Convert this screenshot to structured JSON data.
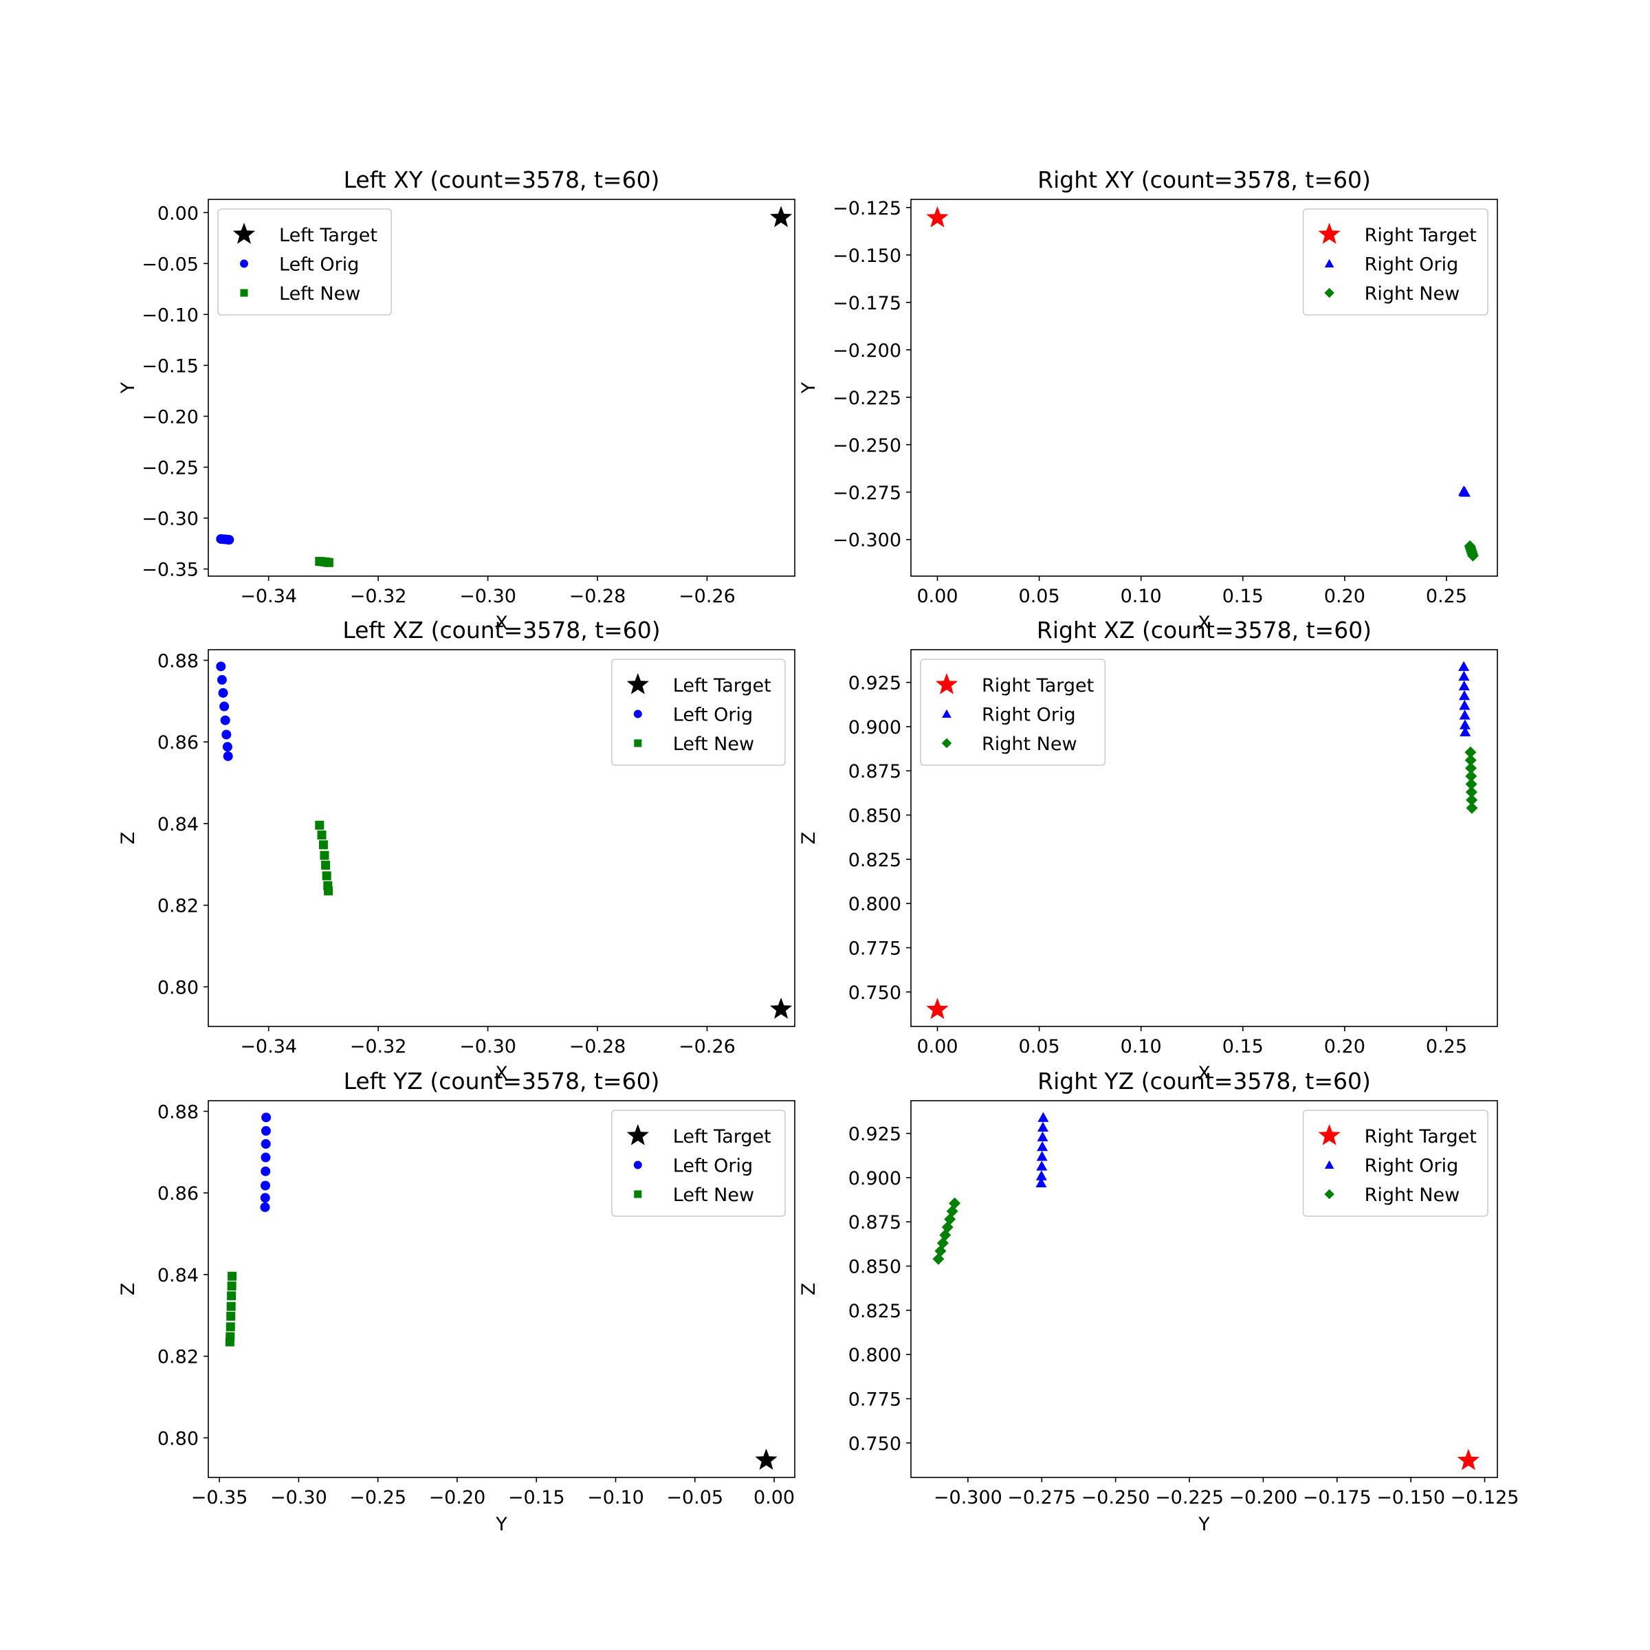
{
  "chart_data": [
    {
      "type": "scatter",
      "title": "Left XY (count=3578, t=60)",
      "xlabel": "X",
      "ylabel": "Y",
      "xlim": [
        -0.351,
        -0.244
      ],
      "ylim": [
        -0.357,
        0.013
      ],
      "xticks": [
        -0.34,
        -0.32,
        -0.3,
        -0.28,
        -0.26
      ],
      "yticks": [
        0.0,
        -0.05,
        -0.1,
        -0.15,
        -0.2,
        -0.25,
        -0.3,
        -0.35
      ],
      "xticklabels": [
        "−0.34",
        "−0.32",
        "−0.30",
        "−0.28",
        "−0.26"
      ],
      "yticklabels": [
        "0.00",
        "−0.05",
        "−0.10",
        "−0.15",
        "−0.20",
        "−0.25",
        "−0.30",
        "−0.35"
      ],
      "legend_position": "upper-left",
      "series": [
        {
          "name": "Left Target",
          "marker": "star",
          "color": "#000000",
          "points": [
            [
              -0.2465,
              -0.005
            ]
          ]
        },
        {
          "name": "Left Orig",
          "marker": "circle",
          "color": "#0000ff",
          "points": [
            [
              -0.3487,
              -0.3205
            ],
            [
              -0.3483,
              -0.3207
            ],
            [
              -0.3479,
              -0.3209
            ],
            [
              -0.3475,
              -0.3211
            ],
            [
              -0.3472,
              -0.3213
            ]
          ]
        },
        {
          "name": "Left New",
          "marker": "square",
          "color": "#008000",
          "points": [
            [
              -0.3307,
              -0.3425
            ],
            [
              -0.3302,
              -0.3428
            ],
            [
              -0.3297,
              -0.3431
            ],
            [
              -0.3293,
              -0.3434
            ],
            [
              -0.329,
              -0.3437
            ]
          ]
        }
      ]
    },
    {
      "type": "scatter",
      "title": "Right XY (count=3578, t=60)",
      "xlabel": "X",
      "ylabel": "Y",
      "xlim": [
        -0.013,
        0.275
      ],
      "ylim": [
        -0.3193,
        -0.1207
      ],
      "xticks": [
        0.0,
        0.05,
        0.1,
        0.15,
        0.2,
        0.25
      ],
      "yticks": [
        -0.125,
        -0.15,
        -0.175,
        -0.2,
        -0.225,
        -0.25,
        -0.275,
        -0.3
      ],
      "xticklabels": [
        "0.00",
        "0.05",
        "0.10",
        "0.15",
        "0.20",
        "0.25"
      ],
      "yticklabels": [
        "−0.125",
        "−0.150",
        "−0.175",
        "−0.200",
        "−0.225",
        "−0.250",
        "−0.275",
        "−0.300"
      ],
      "legend_position": "upper-right",
      "series": [
        {
          "name": "Right Target",
          "marker": "star",
          "color": "#ff0000",
          "points": [
            [
              0.0,
              -0.1305
            ]
          ]
        },
        {
          "name": "Right Orig",
          "marker": "triangle",
          "color": "#0000ff",
          "points": [
            [
              0.2585,
              -0.2745
            ],
            [
              0.2588,
              -0.2748
            ],
            [
              0.2591,
              -0.2751
            ]
          ]
        },
        {
          "name": "Right New",
          "marker": "diamond",
          "color": "#008000",
          "points": [
            [
              0.2615,
              -0.3035
            ],
            [
              0.2618,
              -0.3045
            ],
            [
              0.2621,
              -0.3055
            ],
            [
              0.2624,
              -0.3065
            ],
            [
              0.2627,
              -0.3075
            ],
            [
              0.263,
              -0.3085
            ]
          ]
        }
      ]
    },
    {
      "type": "scatter",
      "title": "Left XZ (count=3578, t=60)",
      "xlabel": "X",
      "ylabel": "Z",
      "xlim": [
        -0.351,
        -0.244
      ],
      "ylim": [
        0.7903,
        0.8826
      ],
      "xticks": [
        -0.34,
        -0.32,
        -0.3,
        -0.28,
        -0.26
      ],
      "yticks": [
        0.8,
        0.82,
        0.84,
        0.86,
        0.88
      ],
      "xticklabels": [
        "−0.34",
        "−0.32",
        "−0.30",
        "−0.28",
        "−0.26"
      ],
      "yticklabels": [
        "0.80",
        "0.82",
        "0.84",
        "0.86",
        "0.88"
      ],
      "legend_position": "upper-right",
      "series": [
        {
          "name": "Left Target",
          "marker": "star",
          "color": "#000000",
          "points": [
            [
              -0.2465,
              0.7945
            ]
          ]
        },
        {
          "name": "Left Orig",
          "marker": "circle",
          "color": "#0000ff",
          "points": [
            [
              -0.3487,
              0.8785
            ],
            [
              -0.3485,
              0.8752
            ],
            [
              -0.3483,
              0.872
            ],
            [
              -0.3481,
              0.8687
            ],
            [
              -0.3479,
              0.8653
            ],
            [
              -0.3477,
              0.8618
            ],
            [
              -0.3475,
              0.8588
            ],
            [
              -0.3474,
              0.8565
            ]
          ]
        },
        {
          "name": "Left New",
          "marker": "square",
          "color": "#008000",
          "points": [
            [
              -0.3307,
              0.8396
            ],
            [
              -0.3303,
              0.8372
            ],
            [
              -0.33,
              0.8348
            ],
            [
              -0.3298,
              0.8322
            ],
            [
              -0.3296,
              0.8298
            ],
            [
              -0.3294,
              0.8272
            ],
            [
              -0.3292,
              0.8248
            ],
            [
              -0.3291,
              0.8235
            ]
          ]
        }
      ]
    },
    {
      "type": "scatter",
      "title": "Right XZ (count=3578, t=60)",
      "xlabel": "X",
      "ylabel": "Z",
      "xlim": [
        -0.013,
        0.275
      ],
      "ylim": [
        0.7305,
        0.9435
      ],
      "xticks": [
        0.0,
        0.05,
        0.1,
        0.15,
        0.2,
        0.25
      ],
      "yticks": [
        0.75,
        0.775,
        0.8,
        0.825,
        0.85,
        0.875,
        0.9,
        0.925
      ],
      "xticklabels": [
        "0.00",
        "0.05",
        "0.10",
        "0.15",
        "0.20",
        "0.25"
      ],
      "yticklabels": [
        "0.750",
        "0.775",
        "0.800",
        "0.825",
        "0.850",
        "0.875",
        "0.900",
        "0.925"
      ],
      "legend_position": "upper-left",
      "series": [
        {
          "name": "Right Target",
          "marker": "star",
          "color": "#ff0000",
          "points": [
            [
              0.0,
              0.74
            ]
          ]
        },
        {
          "name": "Right Orig",
          "marker": "triangle",
          "color": "#0000ff",
          "points": [
            [
              0.2585,
              0.934
            ],
            [
              0.2586,
              0.9285
            ],
            [
              0.2587,
              0.923
            ],
            [
              0.2588,
              0.9175
            ],
            [
              0.2589,
              0.912
            ],
            [
              0.259,
              0.9065
            ],
            [
              0.2591,
              0.901
            ],
            [
              0.2592,
              0.897
            ]
          ]
        },
        {
          "name": "Right New",
          "marker": "diamond",
          "color": "#008000",
          "points": [
            [
              0.2618,
              0.8855
            ],
            [
              0.2619,
              0.881
            ],
            [
              0.262,
              0.8765
            ],
            [
              0.2621,
              0.872
            ],
            [
              0.2622,
              0.8675
            ],
            [
              0.2623,
              0.863
            ],
            [
              0.2624,
              0.8585
            ],
            [
              0.2625,
              0.854
            ]
          ]
        }
      ]
    },
    {
      "type": "scatter",
      "title": "Left YZ (count=3578, t=60)",
      "xlabel": "Y",
      "ylabel": "Z",
      "xlim": [
        -0.357,
        0.013
      ],
      "ylim": [
        0.7903,
        0.8826
      ],
      "xticks": [
        -0.35,
        -0.3,
        -0.25,
        -0.2,
        -0.15,
        -0.1,
        -0.05,
        0.0
      ],
      "yticks": [
        0.8,
        0.82,
        0.84,
        0.86,
        0.88
      ],
      "xticklabels": [
        "−0.35",
        "−0.30",
        "−0.25",
        "−0.20",
        "−0.15",
        "−0.10",
        "−0.05",
        "0.00"
      ],
      "yticklabels": [
        "0.80",
        "0.82",
        "0.84",
        "0.86",
        "0.88"
      ],
      "legend_position": "upper-right",
      "series": [
        {
          "name": "Left Target",
          "marker": "star",
          "color": "#000000",
          "points": [
            [
              -0.005,
              0.7945
            ]
          ]
        },
        {
          "name": "Left Orig",
          "marker": "circle",
          "color": "#0000ff",
          "points": [
            [
              -0.3205,
              0.8785
            ],
            [
              -0.3206,
              0.8752
            ],
            [
              -0.3207,
              0.872
            ],
            [
              -0.3208,
              0.8687
            ],
            [
              -0.3209,
              0.8653
            ],
            [
              -0.321,
              0.8618
            ],
            [
              -0.3211,
              0.8588
            ],
            [
              -0.3212,
              0.8565
            ]
          ]
        },
        {
          "name": "Left New",
          "marker": "square",
          "color": "#008000",
          "points": [
            [
              -0.342,
              0.8396
            ],
            [
              -0.3422,
              0.8372
            ],
            [
              -0.3424,
              0.8348
            ],
            [
              -0.3426,
              0.8322
            ],
            [
              -0.3428,
              0.8298
            ],
            [
              -0.343,
              0.8272
            ],
            [
              -0.3432,
              0.8248
            ],
            [
              -0.3434,
              0.8235
            ]
          ]
        }
      ]
    },
    {
      "type": "scatter",
      "title": "Right YZ (count=3578, t=60)",
      "xlabel": "Y",
      "ylabel": "Z",
      "xlim": [
        -0.3193,
        -0.1207
      ],
      "ylim": [
        0.7305,
        0.9435
      ],
      "xticks": [
        -0.3,
        -0.275,
        -0.25,
        -0.225,
        -0.2,
        -0.175,
        -0.15,
        -0.125
      ],
      "yticks": [
        0.75,
        0.775,
        0.8,
        0.825,
        0.85,
        0.875,
        0.9,
        0.925
      ],
      "xticklabels": [
        "−0.300",
        "−0.275",
        "−0.250",
        "−0.225",
        "−0.200",
        "−0.175",
        "−0.150",
        "−0.125"
      ],
      "yticklabels": [
        "0.750",
        "0.775",
        "0.800",
        "0.825",
        "0.850",
        "0.875",
        "0.900",
        "0.925"
      ],
      "legend_position": "upper-right",
      "series": [
        {
          "name": "Right Target",
          "marker": "star",
          "color": "#ff0000",
          "points": [
            [
              -0.1305,
              0.74
            ]
          ]
        },
        {
          "name": "Right Orig",
          "marker": "triangle",
          "color": "#0000ff",
          "points": [
            [
              -0.2745,
              0.934
            ],
            [
              -0.2746,
              0.9285
            ],
            [
              -0.2747,
              0.923
            ],
            [
              -0.2748,
              0.9175
            ],
            [
              -0.2749,
              0.912
            ],
            [
              -0.275,
              0.9065
            ],
            [
              -0.2751,
              0.901
            ],
            [
              -0.2752,
              0.897
            ]
          ]
        },
        {
          "name": "Right New",
          "marker": "diamond",
          "color": "#008000",
          "points": [
            [
              -0.3045,
              0.8855
            ],
            [
              -0.3053,
              0.881
            ],
            [
              -0.3061,
              0.8765
            ],
            [
              -0.3069,
              0.872
            ],
            [
              -0.3077,
              0.8675
            ],
            [
              -0.3085,
              0.863
            ],
            [
              -0.3093,
              0.8585
            ],
            [
              -0.31,
              0.854
            ]
          ]
        }
      ]
    }
  ]
}
